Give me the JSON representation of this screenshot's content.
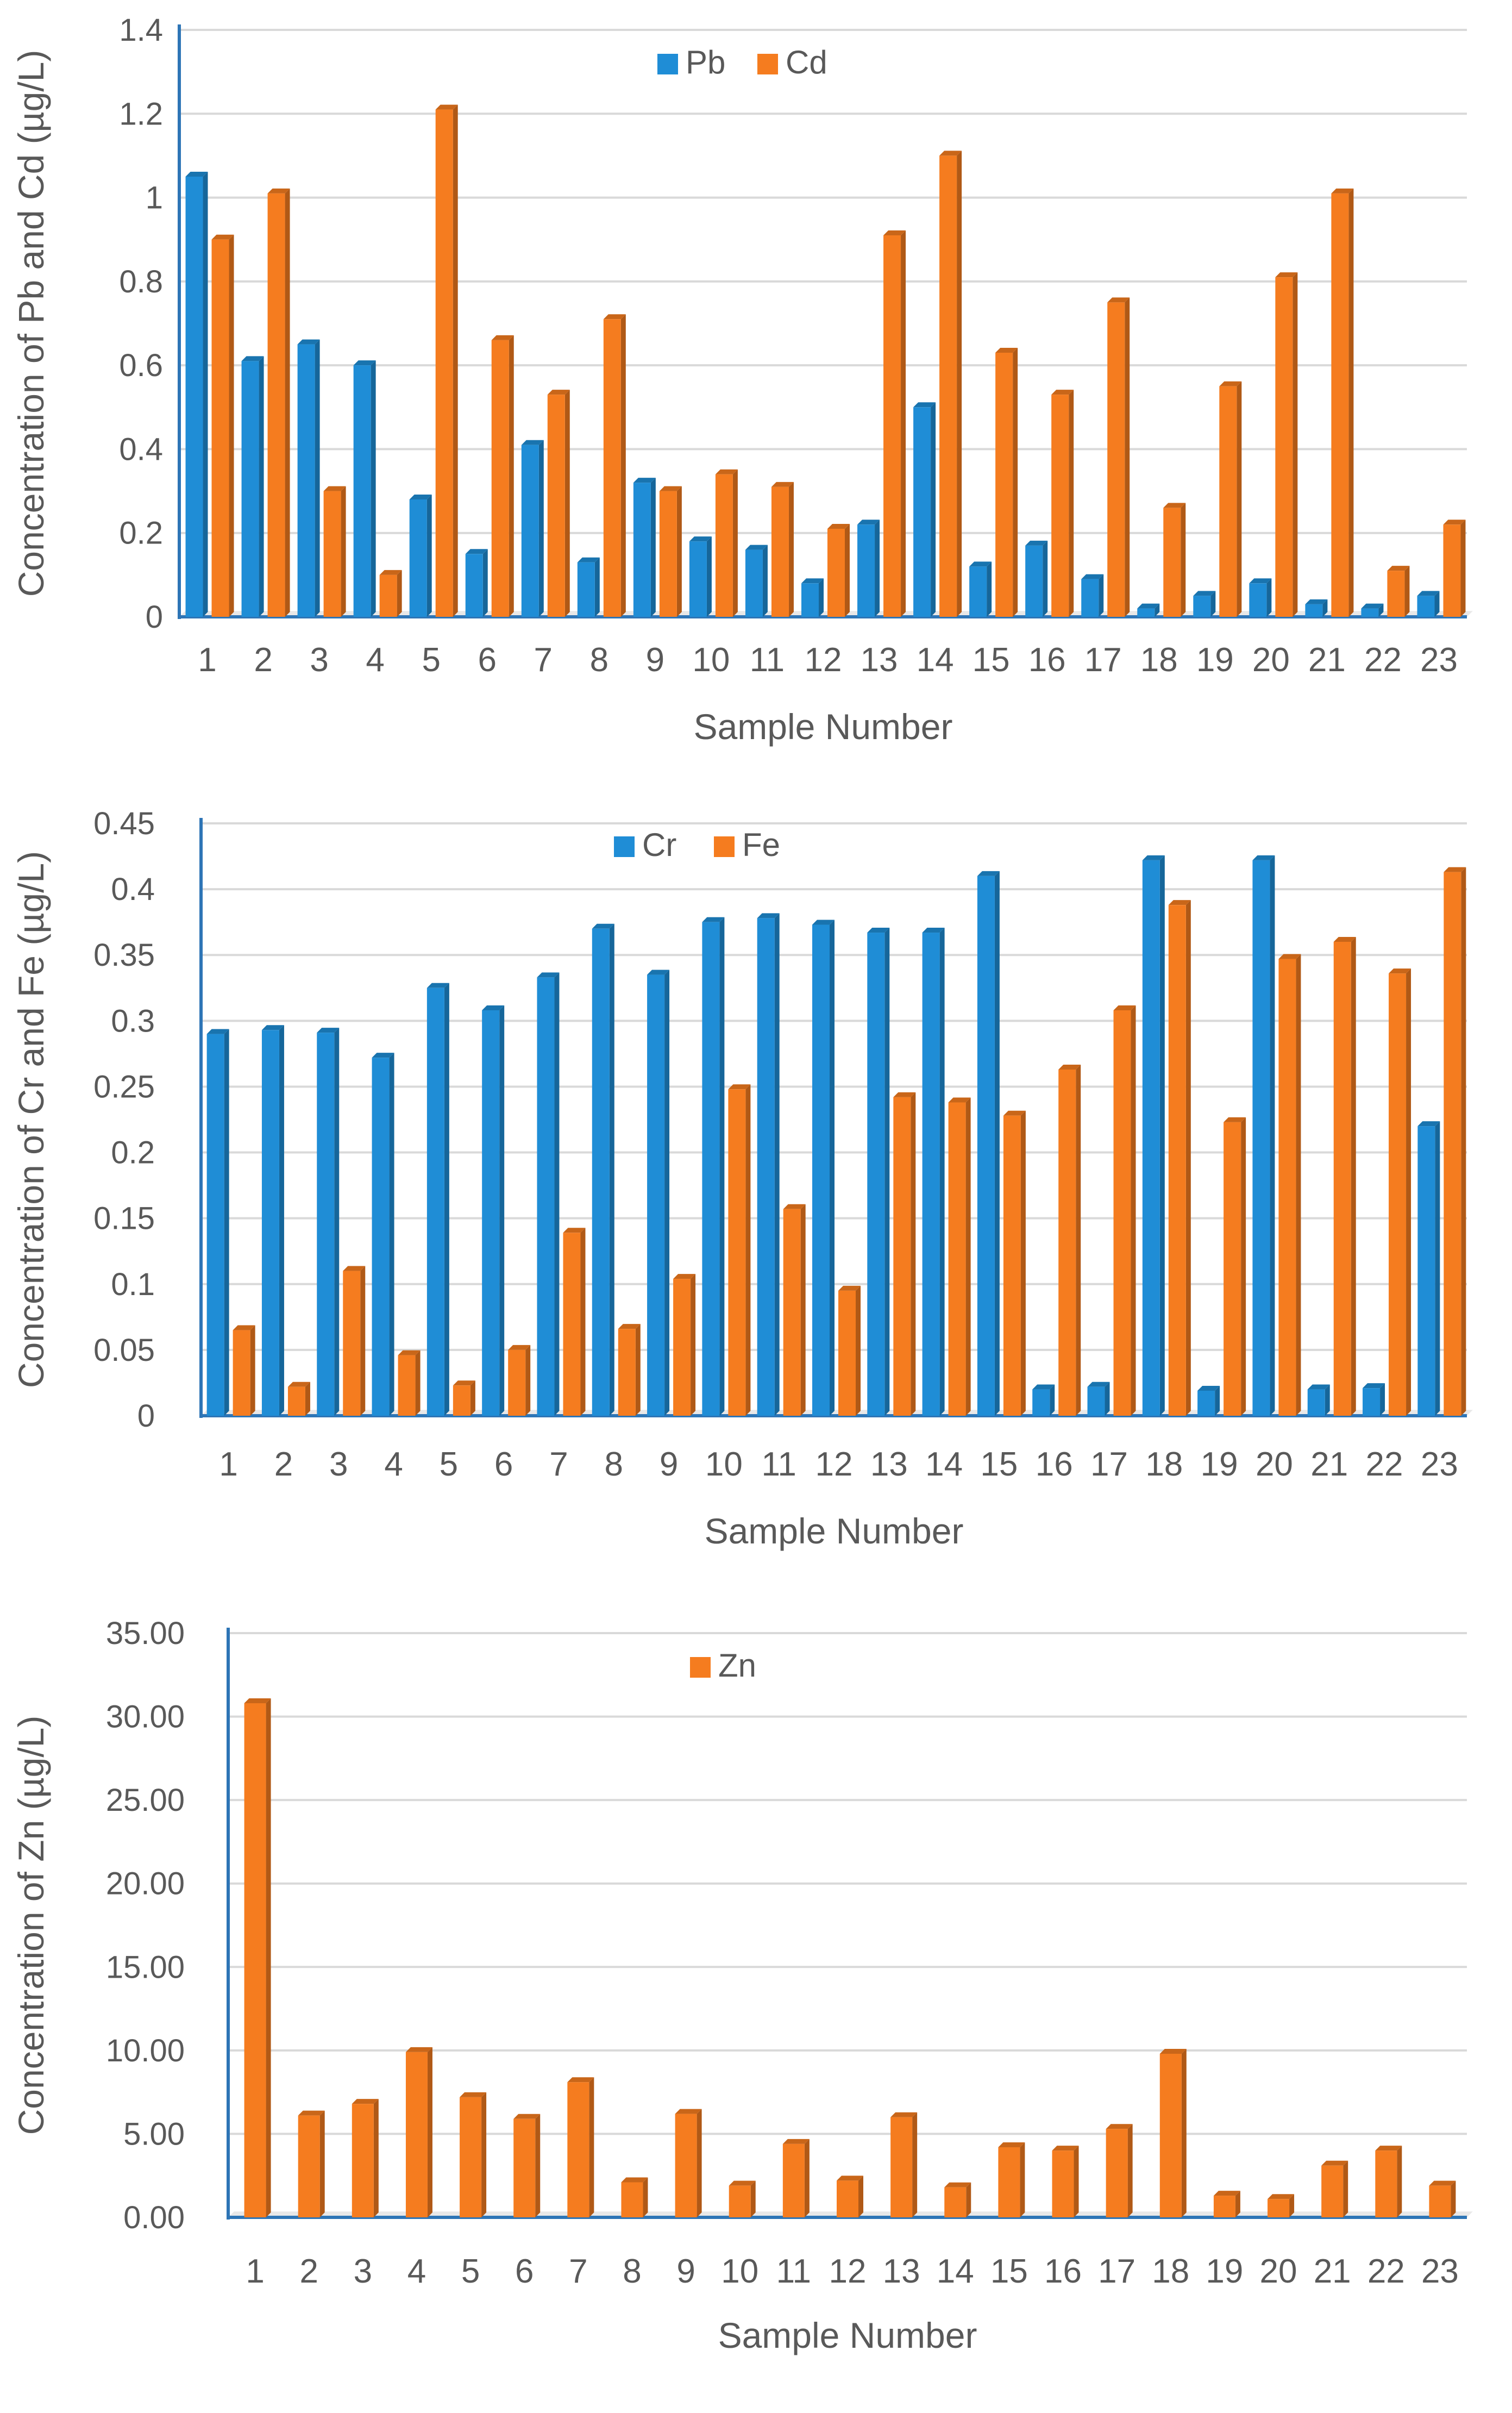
{
  "chart_data": [
    {
      "type": "bar",
      "title": "",
      "xlabel": "Sample Number",
      "ylabel": "Concentration of Pb and Cd (µg/L)",
      "ylim": [
        0,
        1.4
      ],
      "yticks": [
        "0",
        "0.2",
        "0.4",
        "0.6",
        "0.8",
        "1",
        "1.2",
        "1.4"
      ],
      "categories": [
        "1",
        "2",
        "3",
        "4",
        "5",
        "6",
        "7",
        "8",
        "9",
        "10",
        "11",
        "12",
        "13",
        "14",
        "15",
        "16",
        "17",
        "18",
        "19",
        "20",
        "21",
        "22",
        "23"
      ],
      "legend_position": "top-center",
      "series": [
        {
          "name": "Pb",
          "color": "#1f8dd6",
          "values": [
            1.05,
            0.61,
            0.65,
            0.6,
            0.28,
            0.15,
            0.41,
            0.13,
            0.32,
            0.18,
            0.16,
            0.08,
            0.22,
            0.5,
            0.12,
            0.17,
            0.09,
            0.02,
            0.05,
            0.08,
            0.03,
            0.02,
            0.05
          ]
        },
        {
          "name": "Cd",
          "color": "#f57c1f",
          "values": [
            0.9,
            1.01,
            0.3,
            0.1,
            1.21,
            0.66,
            0.53,
            0.71,
            0.3,
            0.34,
            0.31,
            0.21,
            0.91,
            1.1,
            0.63,
            0.53,
            0.75,
            0.26,
            0.55,
            0.81,
            1.01,
            0.11,
            0.22
          ]
        }
      ]
    },
    {
      "type": "bar",
      "title": "",
      "xlabel": "Sample Number",
      "ylabel": "Concentration of Cr and Fe (µg/L)",
      "ylim": [
        0,
        0.45
      ],
      "yticks": [
        "0",
        "0.05",
        "0.1",
        "0.15",
        "0.2",
        "0.25",
        "0.3",
        "0.35",
        "0.4",
        "0.45"
      ],
      "categories": [
        "1",
        "2",
        "3",
        "4",
        "5",
        "6",
        "7",
        "8",
        "9",
        "10",
        "11",
        "12",
        "13",
        "14",
        "15",
        "16",
        "17",
        "18",
        "19",
        "20",
        "21",
        "22",
        "23"
      ],
      "legend_position": "top-center",
      "series": [
        {
          "name": "Cr",
          "color": "#1f8dd6",
          "values": [
            0.29,
            0.293,
            0.291,
            0.272,
            0.325,
            0.308,
            0.333,
            0.37,
            0.335,
            0.375,
            0.378,
            0.373,
            0.367,
            0.367,
            0.41,
            0.02,
            0.022,
            0.422,
            0.019,
            0.422,
            0.02,
            0.021,
            0.22
          ]
        },
        {
          "name": "Fe",
          "color": "#f57c1f",
          "values": [
            0.065,
            0.022,
            0.11,
            0.046,
            0.023,
            0.05,
            0.139,
            0.066,
            0.104,
            0.248,
            0.157,
            0.095,
            0.242,
            0.238,
            0.228,
            0.263,
            0.308,
            0.388,
            0.223,
            0.347,
            0.36,
            0.336,
            0.413
          ]
        }
      ]
    },
    {
      "type": "bar",
      "title": "",
      "xlabel": "Sample Number",
      "ylabel": "Concentration of Zn (µg/L)",
      "ylim": [
        0,
        35
      ],
      "yticks": [
        "0.00",
        "5.00",
        "10.00",
        "15.00",
        "20.00",
        "25.00",
        "30.00",
        "35.00"
      ],
      "categories": [
        "1",
        "2",
        "3",
        "4",
        "5",
        "6",
        "7",
        "8",
        "9",
        "10",
        "11",
        "12",
        "13",
        "14",
        "15",
        "16",
        "17",
        "18",
        "19",
        "20",
        "21",
        "22",
        "23"
      ],
      "legend_position": "top-center",
      "series": [
        {
          "name": "Zn",
          "color": "#f57c1f",
          "values": [
            30.8,
            6.1,
            6.8,
            9.9,
            7.2,
            5.9,
            8.1,
            2.1,
            6.2,
            1.9,
            4.4,
            2.2,
            6.0,
            1.8,
            4.2,
            4.0,
            5.3,
            9.8,
            1.3,
            1.1,
            3.1,
            4.0,
            1.9
          ]
        }
      ]
    }
  ]
}
